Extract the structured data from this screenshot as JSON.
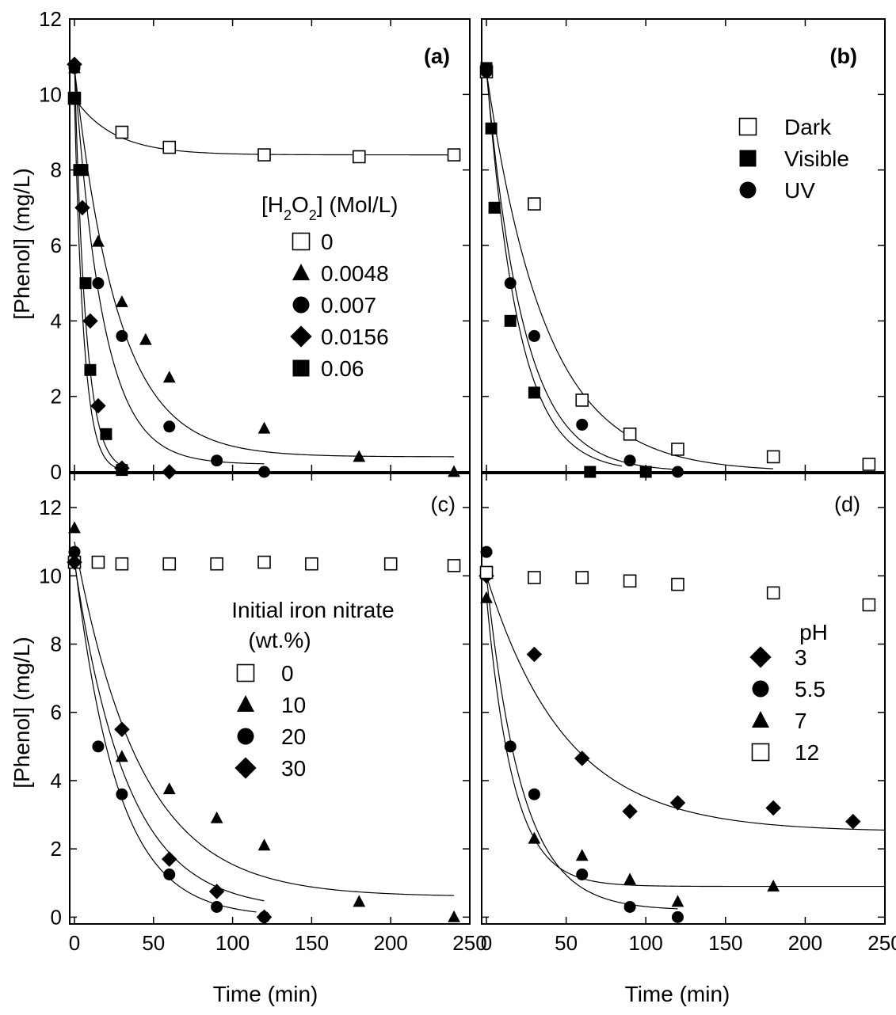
{
  "figure": {
    "y_axis_title": "[Phenol] (mg/L)",
    "x_axis_title": "Time (min)"
  },
  "chart_data": [
    {
      "id": "a",
      "type": "scatter",
      "panel_label": "(a)",
      "xlabel": "Time (min)",
      "ylabel": "[Phenol] (mg/L)",
      "xlim": [
        -3,
        250
      ],
      "ylim": [
        0,
        12
      ],
      "x_ticks": [
        0,
        50,
        100,
        150,
        200,
        250
      ],
      "y_ticks": [
        0,
        2,
        4,
        6,
        8,
        10,
        12
      ],
      "legend_title": "[H₂O₂] (Mol/L)",
      "legend_title_parts": [
        "[H",
        "2",
        "O",
        "2",
        "] (Mol/L)"
      ],
      "legend_position": "center",
      "series": [
        {
          "name": "0",
          "marker": "square-open",
          "x": [
            0,
            30,
            60,
            120,
            180,
            240
          ],
          "y": [
            9.9,
            9.0,
            8.6,
            8.4,
            8.35,
            8.4
          ],
          "fit": {
            "a": 9.9,
            "b": 8.4,
            "k": 0.04,
            "t_end": 240
          }
        },
        {
          "name": "0.0048",
          "marker": "triangle",
          "x": [
            0,
            15,
            30,
            45,
            60,
            120,
            180,
            240
          ],
          "y": [
            10.7,
            6.1,
            4.5,
            3.5,
            2.5,
            1.15,
            0.4,
            0.0
          ],
          "fit": {
            "a": 10.7,
            "b": 0.4,
            "k": 0.036,
            "t_end": 240
          }
        },
        {
          "name": "0.007",
          "marker": "circle",
          "x": [
            0,
            15,
            30,
            60,
            90,
            120
          ],
          "y": [
            10.7,
            5.0,
            3.6,
            1.2,
            0.3,
            0.0
          ],
          "fit": {
            "a": 10.7,
            "b": 0.2,
            "k": 0.055,
            "t_end": 120
          }
        },
        {
          "name": "0.0156",
          "marker": "diamond",
          "x": [
            0,
            5,
            10,
            15,
            30,
            60
          ],
          "y": [
            10.8,
            7.0,
            4.0,
            1.75,
            0.1,
            0.0
          ],
          "fit": {
            "a": 10.8,
            "b": 0.0,
            "k": 0.14,
            "t_end": 30
          }
        },
        {
          "name": "0.06",
          "marker": "square-filled",
          "x": [
            0,
            3,
            5,
            7,
            10,
            20,
            30
          ],
          "y": [
            9.9,
            8.0,
            8.0,
            5.0,
            2.7,
            1.0,
            0.05
          ],
          "fit": {
            "a": 9.9,
            "b": 0.0,
            "k": 0.17,
            "t_end": 30
          }
        }
      ]
    },
    {
      "id": "b",
      "type": "scatter",
      "panel_label": "(b)",
      "xlabel": "Time (min)",
      "ylabel": "[Phenol] (mg/L)",
      "xlim": [
        -3,
        250
      ],
      "ylim": [
        0,
        12
      ],
      "x_ticks": [
        0,
        50,
        100,
        150,
        200,
        250
      ],
      "y_ticks": [
        0,
        2,
        4,
        6,
        8,
        10,
        12
      ],
      "legend_position": "top-right",
      "series": [
        {
          "name": "Dark",
          "marker": "square-open",
          "x": [
            0,
            30,
            60,
            90,
            120,
            180,
            240
          ],
          "y": [
            10.6,
            7.1,
            1.9,
            1.0,
            0.6,
            0.4,
            0.2
          ],
          "fit": {
            "a": 10.6,
            "b": 0.0,
            "k": 0.027,
            "t_end": 180
          }
        },
        {
          "name": "Visible",
          "marker": "square-filled",
          "x": [
            0,
            3,
            5,
            15,
            30,
            65,
            100
          ],
          "y": [
            10.7,
            9.1,
            7.0,
            4.0,
            2.1,
            0.0,
            0.0
          ],
          "fit": {
            "a": 10.7,
            "b": 0.0,
            "k": 0.05,
            "t_end": 85
          }
        },
        {
          "name": "UV",
          "marker": "circle",
          "x": [
            0,
            15,
            30,
            60,
            90,
            120
          ],
          "y": [
            10.6,
            5.0,
            3.6,
            1.25,
            0.3,
            0.0
          ],
          "fit": {
            "a": 10.6,
            "b": 0.0,
            "k": 0.043,
            "t_end": 120
          }
        }
      ]
    },
    {
      "id": "c",
      "type": "scatter",
      "panel_label": "(c)",
      "xlabel": "Time (min)",
      "ylabel": "[Phenol] (mg/L)",
      "xlim": [
        -3,
        250
      ],
      "ylim": [
        -0.2,
        13
      ],
      "x_ticks": [
        0,
        50,
        100,
        150,
        200,
        250
      ],
      "y_ticks": [
        0,
        2,
        4,
        6,
        8,
        10,
        12
      ],
      "legend_title_lines": [
        "Initial iron nitrate",
        "(wt.%)"
      ],
      "legend_position": "center",
      "series": [
        {
          "name": "0",
          "marker": "square-open",
          "x": [
            0,
            15,
            30,
            60,
            90,
            120,
            150,
            200,
            240
          ],
          "y": [
            10.4,
            10.4,
            10.35,
            10.35,
            10.35,
            10.4,
            10.35,
            10.35,
            10.3
          ],
          "fit": null
        },
        {
          "name": "10",
          "marker": "triangle",
          "x": [
            0,
            30,
            60,
            90,
            120,
            180,
            240
          ],
          "y": [
            11.4,
            4.7,
            3.75,
            2.9,
            2.1,
            0.45,
            0.0
          ],
          "fit": {
            "a": 11.0,
            "b": 0.6,
            "k": 0.024,
            "t_end": 240
          }
        },
        {
          "name": "20",
          "marker": "circle",
          "x": [
            0,
            15,
            30,
            60,
            90,
            120
          ],
          "y": [
            10.7,
            5.0,
            3.6,
            1.25,
            0.3,
            0.0
          ],
          "fit": {
            "a": 10.5,
            "b": 0.0,
            "k": 0.037,
            "t_end": 115
          }
        },
        {
          "name": "30",
          "marker": "diamond",
          "x": [
            0,
            30,
            60,
            90,
            120
          ],
          "y": [
            10.4,
            5.5,
            1.7,
            0.75,
            0.0
          ],
          "fit": {
            "a": 10.4,
            "b": 0.2,
            "k": 0.03,
            "t_end": 120
          }
        }
      ]
    },
    {
      "id": "d",
      "type": "scatter",
      "panel_label": "(d)",
      "xlabel": "Time (min)",
      "ylabel": "[Phenol] (mg/L)",
      "xlim": [
        -3,
        250
      ],
      "ylim": [
        -0.2,
        13
      ],
      "x_ticks": [
        0,
        50,
        100,
        150,
        200,
        250
      ],
      "y_ticks": [
        0,
        2,
        4,
        6,
        8,
        10,
        12
      ],
      "legend_title": "pH",
      "legend_position": "right",
      "series": [
        {
          "name": "3",
          "marker": "diamond",
          "x": [
            0,
            30,
            60,
            90,
            120,
            180,
            230
          ],
          "y": [
            10.0,
            7.7,
            4.65,
            3.1,
            3.35,
            3.2,
            2.8
          ],
          "fit": {
            "a": 10.0,
            "b": 2.5,
            "k": 0.02,
            "t_end": 250
          }
        },
        {
          "name": "5.5",
          "marker": "circle",
          "x": [
            0,
            15,
            30,
            60,
            90,
            120
          ],
          "y": [
            10.7,
            5.0,
            3.6,
            1.25,
            0.3,
            0.0
          ],
          "fit": {
            "a": 10.0,
            "b": 0.2,
            "k": 0.045,
            "t_end": 120
          }
        },
        {
          "name": "7",
          "marker": "triangle",
          "x": [
            0,
            30,
            60,
            90,
            120,
            180
          ],
          "y": [
            9.35,
            2.3,
            1.8,
            1.1,
            0.45,
            0.9
          ],
          "fit": {
            "a": 9.4,
            "b": 0.9,
            "k": 0.06,
            "t_end": 250
          }
        },
        {
          "name": "12",
          "marker": "square-open",
          "x": [
            0,
            30,
            60,
            90,
            120,
            180,
            240
          ],
          "y": [
            10.1,
            9.95,
            9.95,
            9.85,
            9.75,
            9.5,
            9.15
          ],
          "fit": null
        }
      ]
    }
  ]
}
